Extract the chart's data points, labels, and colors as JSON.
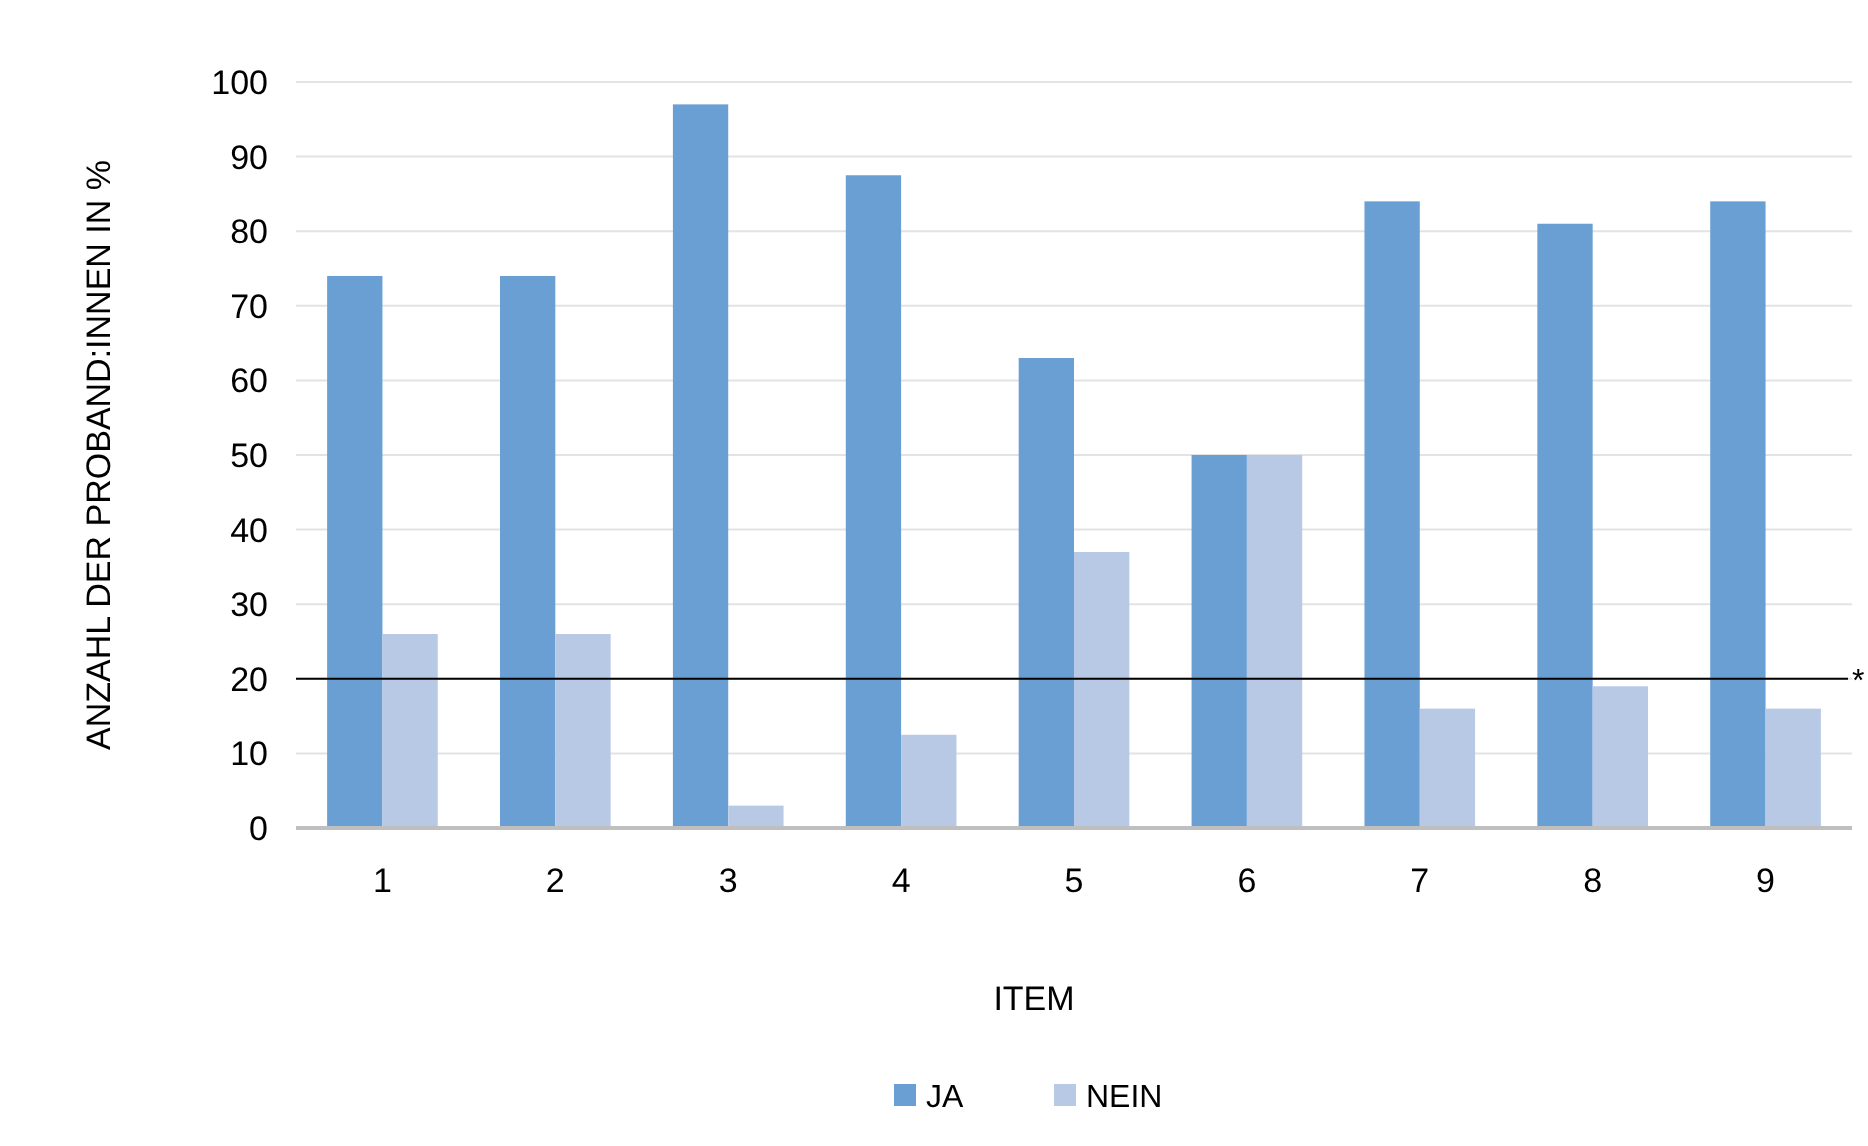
{
  "chart_data": {
    "type": "bar",
    "categories": [
      "1",
      "2",
      "3",
      "4",
      "5",
      "6",
      "7",
      "8",
      "9"
    ],
    "series": [
      {
        "name": "JA",
        "color": "#6a9fd4",
        "values": [
          74,
          74,
          97,
          87.5,
          63,
          50,
          84,
          81,
          84
        ]
      },
      {
        "name": "NEIN",
        "color": "#b8c9e6",
        "values": [
          26,
          26,
          3,
          12.5,
          37,
          50,
          16,
          19,
          16
        ]
      }
    ],
    "xlabel": "ITEM",
    "ylabel": "ANZAHL DER PROBAND:INNEN IN %",
    "ylim": [
      0,
      100
    ],
    "yticks": [
      0,
      10,
      20,
      30,
      40,
      50,
      60,
      70,
      80,
      90,
      100
    ],
    "grid": "y",
    "legend": "bottom",
    "ref_lines": [
      {
        "axis": "y",
        "value": 20,
        "label": "*",
        "color": "#000000"
      }
    ]
  }
}
